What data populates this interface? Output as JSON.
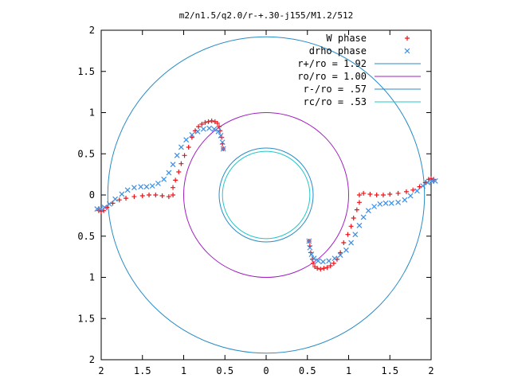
{
  "chart_data": {
    "type": "scatter",
    "title": "m2/n1.5/q2.0/r-+.30-j155/M1.2/512",
    "xlim": [
      -2,
      2
    ],
    "ylim": [
      -2,
      2
    ],
    "xticks": [
      "2",
      "1.5",
      "1",
      "0.5",
      "0",
      "0.5",
      "1",
      "1.5",
      "2"
    ],
    "yticks": [
      "2",
      "1.5",
      "1",
      "0.5",
      "0",
      "0.5",
      "1",
      "1.5",
      "2"
    ],
    "tick_values": [
      -2,
      -1.5,
      -1,
      -0.5,
      0,
      0.5,
      1,
      1.5,
      2
    ],
    "grid": false,
    "legend_position": "top-right",
    "circles": [
      {
        "name": "r+/ro = 1.92",
        "radius": 1.92,
        "color": "#2a8cc6"
      },
      {
        "name": "ro/ro = 1.00",
        "radius": 1.0,
        "color": "#a020c0"
      },
      {
        "name": "r-/ro = .57",
        "radius": 0.57,
        "color": "#2a8cc6"
      },
      {
        "name": "rc/ro = .53",
        "radius": 0.53,
        "color": "#20c8c8"
      }
    ],
    "series": [
      {
        "name": "W phase",
        "marker": "+",
        "color": "#e8141c",
        "points": [
          [
            -0.52,
            0.56
          ],
          [
            -0.53,
            0.62
          ],
          [
            -0.54,
            0.7
          ],
          [
            -0.56,
            0.78
          ],
          [
            -0.57,
            0.83
          ],
          [
            -0.59,
            0.87
          ],
          [
            -0.62,
            0.89
          ],
          [
            -0.66,
            0.9
          ],
          [
            -0.7,
            0.89
          ],
          [
            -0.74,
            0.88
          ],
          [
            -0.78,
            0.86
          ],
          [
            -0.82,
            0.83
          ],
          [
            -0.86,
            0.78
          ],
          [
            -0.9,
            0.7
          ],
          [
            -0.94,
            0.58
          ],
          [
            -0.99,
            0.48
          ],
          [
            -1.03,
            0.38
          ],
          [
            -1.06,
            0.28
          ],
          [
            -1.1,
            0.18
          ],
          [
            -1.13,
            0.09
          ],
          [
            -1.13,
            0.0
          ],
          [
            -1.18,
            -0.02
          ],
          [
            -1.26,
            -0.01
          ],
          [
            -1.34,
            0.0
          ],
          [
            -1.42,
            0.0
          ],
          [
            -1.5,
            -0.01
          ],
          [
            -1.6,
            -0.02
          ],
          [
            -1.7,
            -0.04
          ],
          [
            -1.78,
            -0.06
          ],
          [
            -1.86,
            -0.1
          ],
          [
            -1.93,
            -0.15
          ],
          [
            -1.97,
            -0.19
          ],
          [
            -2.0,
            -0.2
          ],
          [
            -2.03,
            -0.19
          ],
          [
            0.52,
            -0.56
          ],
          [
            0.53,
            -0.62
          ],
          [
            0.54,
            -0.7
          ],
          [
            0.56,
            -0.78
          ],
          [
            0.57,
            -0.83
          ],
          [
            0.59,
            -0.87
          ],
          [
            0.62,
            -0.89
          ],
          [
            0.66,
            -0.9
          ],
          [
            0.7,
            -0.89
          ],
          [
            0.74,
            -0.88
          ],
          [
            0.78,
            -0.86
          ],
          [
            0.82,
            -0.83
          ],
          [
            0.86,
            -0.78
          ],
          [
            0.9,
            -0.7
          ],
          [
            0.94,
            -0.58
          ],
          [
            0.99,
            -0.48
          ],
          [
            1.03,
            -0.38
          ],
          [
            1.06,
            -0.28
          ],
          [
            1.1,
            -0.18
          ],
          [
            1.13,
            -0.09
          ],
          [
            1.13,
            0.0
          ],
          [
            1.18,
            0.02
          ],
          [
            1.26,
            0.01
          ],
          [
            1.34,
            0.0
          ],
          [
            1.42,
            0.0
          ],
          [
            1.5,
            0.01
          ],
          [
            1.6,
            0.02
          ],
          [
            1.7,
            0.04
          ],
          [
            1.78,
            0.06
          ],
          [
            1.86,
            0.1
          ],
          [
            1.93,
            0.15
          ],
          [
            1.97,
            0.19
          ],
          [
            2.0,
            0.2
          ],
          [
            2.03,
            0.19
          ]
        ]
      },
      {
        "name": "drho phase",
        "marker": "x",
        "color": "#3a8ee6",
        "points": [
          [
            -0.52,
            0.56
          ],
          [
            -0.53,
            0.64
          ],
          [
            -0.55,
            0.72
          ],
          [
            -0.58,
            0.77
          ],
          [
            -0.63,
            0.8
          ],
          [
            -0.69,
            0.81
          ],
          [
            -0.76,
            0.8
          ],
          [
            -0.83,
            0.77
          ],
          [
            -0.9,
            0.73
          ],
          [
            -0.97,
            0.67
          ],
          [
            -1.03,
            0.58
          ],
          [
            -1.08,
            0.48
          ],
          [
            -1.13,
            0.37
          ],
          [
            -1.18,
            0.27
          ],
          [
            -1.24,
            0.19
          ],
          [
            -1.31,
            0.14
          ],
          [
            -1.38,
            0.11
          ],
          [
            -1.45,
            0.1
          ],
          [
            -1.52,
            0.1
          ],
          [
            -1.6,
            0.09
          ],
          [
            -1.68,
            0.06
          ],
          [
            -1.75,
            0.01
          ],
          [
            -1.83,
            -0.05
          ],
          [
            -1.9,
            -0.11
          ],
          [
            -1.96,
            -0.15
          ],
          [
            -2.01,
            -0.17
          ],
          [
            -2.05,
            -0.17
          ],
          [
            0.52,
            -0.56
          ],
          [
            0.53,
            -0.64
          ],
          [
            0.55,
            -0.72
          ],
          [
            0.58,
            -0.77
          ],
          [
            0.63,
            -0.8
          ],
          [
            0.69,
            -0.81
          ],
          [
            0.76,
            -0.8
          ],
          [
            0.83,
            -0.77
          ],
          [
            0.9,
            -0.73
          ],
          [
            0.97,
            -0.67
          ],
          [
            1.03,
            -0.58
          ],
          [
            1.08,
            -0.48
          ],
          [
            1.13,
            -0.37
          ],
          [
            1.18,
            -0.27
          ],
          [
            1.24,
            -0.19
          ],
          [
            1.31,
            -0.14
          ],
          [
            1.38,
            -0.11
          ],
          [
            1.45,
            -0.1
          ],
          [
            1.52,
            -0.1
          ],
          [
            1.6,
            -0.09
          ],
          [
            1.68,
            -0.06
          ],
          [
            1.75,
            -0.01
          ],
          [
            1.83,
            0.05
          ],
          [
            1.9,
            0.11
          ],
          [
            1.96,
            0.15
          ],
          [
            2.01,
            0.17
          ],
          [
            2.05,
            0.17
          ]
        ]
      }
    ]
  }
}
